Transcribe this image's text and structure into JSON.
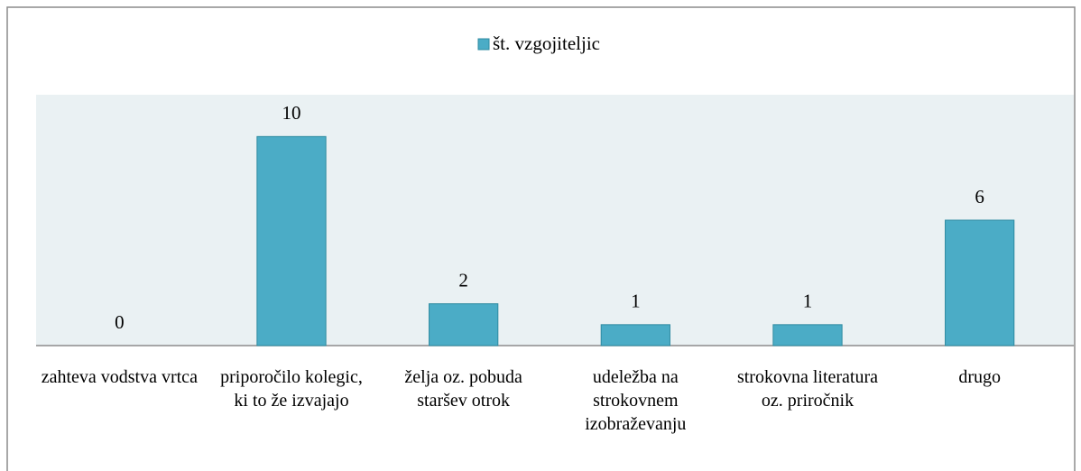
{
  "chart_data": {
    "type": "bar",
    "categories": [
      "zahteva vodstva vrtca",
      "priporočilo kolegic, ki to že izvajajo",
      "želja oz. pobuda staršev otrok",
      "udeležba na strokovnem izobraževanju",
      "strokovna literatura oz. priročnik",
      "drugo"
    ],
    "series": [
      {
        "name": "št. vzgojiteljic",
        "color": "#4bacc6",
        "values": [
          0,
          10,
          2,
          1,
          1,
          6
        ]
      }
    ],
    "ylim": [
      0,
      12
    ],
    "legend": "top"
  }
}
